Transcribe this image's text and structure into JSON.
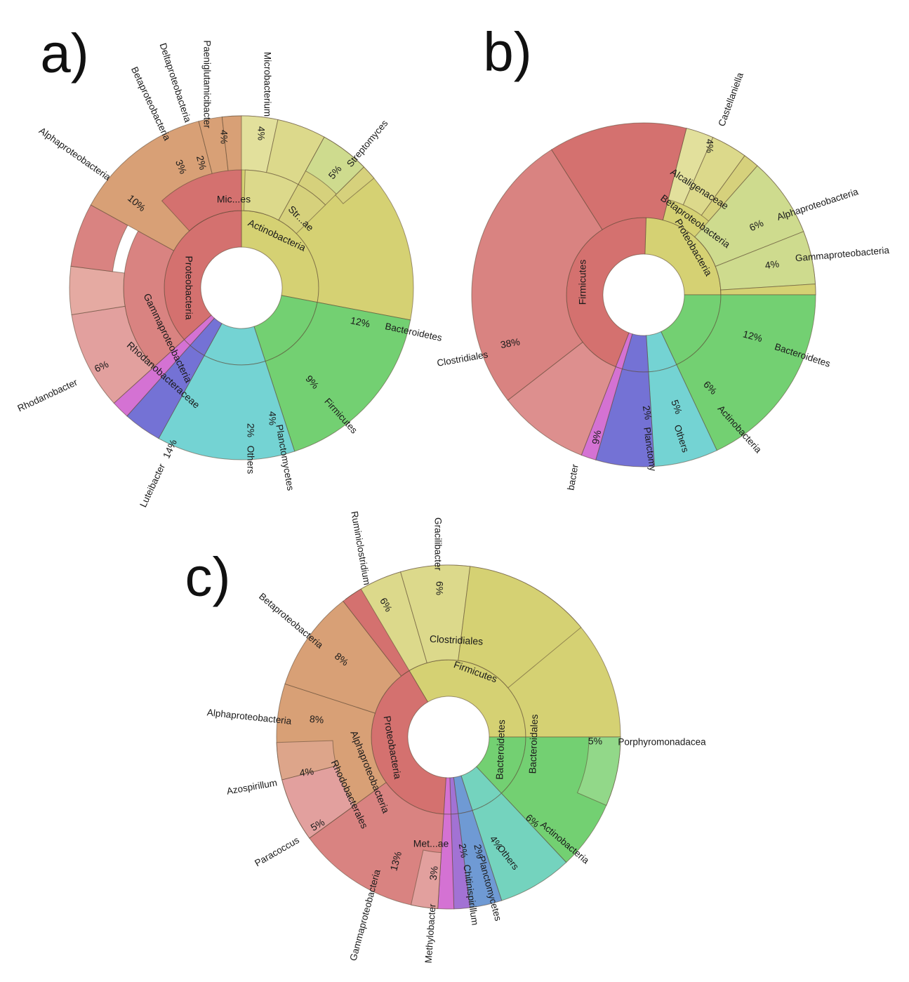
{
  "chart_data": [
    {
      "type": "sunburst",
      "panel": "a)",
      "levels": [
        {
          "level": 1,
          "items": [
            {
              "name": "Proteobacteria",
              "start": -0.1,
              "end": 28.4,
              "color": "#d4716f"
            },
            {
              "name": "Actinobacteria",
              "start": 28.4,
              "end": 56,
              "color": "#d5d173"
            },
            {
              "name": "Bacteroidetes",
              "start": 56,
              "end": 68,
              "color": "#73d072"
            },
            {
              "name": "Firmicutes",
              "start": 68,
              "end": 77,
              "color": "#74d3d3"
            },
            {
              "name": "Planctomycetes",
              "start": 77,
              "end": 81,
              "color": "#7472d5"
            },
            {
              "name": "Others",
              "start": 81,
              "end": 82.6,
              "color": "#d472d3"
            },
            {
              "name": "Proteobacteria",
              "start": 82.6,
              "end": 99.9,
              "color": "#d4716f"
            }
          ]
        },
        {
          "level": 2,
          "items": [
            {
              "name": "Betaproteobacteria",
              "start": -0.1,
              "end": 3,
              "color": "#d8a076"
            },
            {
              "name": "Deltaproteobacteria",
              "start": -2.6,
              "end": -0.1,
              "color": "#d8a076"
            },
            {
              "name": "Alphaproteobacteria",
              "start": -13,
              "end": -2.6,
              "color": "#d8a076"
            },
            {
              "name": "Gammaproteobacteria",
              "start": -17.4,
              "end": -13,
              "color": "#d98381"
            },
            {
              "name": "",
              "start": 3,
              "end": 28.4,
              "color": "#d98381"
            },
            {
              "name": "Mic...es",
              "start": -0.3,
              "end": 7,
              "color": "#dcd98b"
            },
            {
              "name": "Str...ae",
              "start": 7,
              "end": 11.5,
              "color": "#d6d17c"
            }
          ]
        },
        {
          "level": 3,
          "items": [
            {
              "name": "Paeniglutamicibacter",
              "start": -0.3,
              "end": 3.7,
              "color": "#e2e09c"
            },
            {
              "name": "Microbacterium",
              "start": 3.7,
              "end": 7.7,
              "color": "#dcd98b"
            },
            {
              "name": "Streptomyces",
              "start": 7.7,
              "end": 12.5,
              "color": "#cedb8e"
            }
          ]
        }
      ],
      "percent_labels": [
        "4%",
        "4%",
        "5%",
        "2%",
        "3%",
        "10%",
        "6%",
        "14%",
        "2%",
        "4%",
        "9%",
        "12%"
      ],
      "outer_labels": [
        "Paeniglutamicibacter",
        "Microbacterium",
        "Streptomyces",
        "Deltaproteobacteria",
        "Betaproteobacteria",
        "Alphaproteobacteria",
        "Rhodanobacter",
        "Luteibacter",
        "Others",
        "Planctomycetes",
        "Firmicutes",
        "Bacteroidetes"
      ],
      "inner_labels": [
        "Mic...es",
        "Str...ae",
        "Actinobacteria",
        "Proteobacteria",
        "Gammaproteobacteria",
        "Rhodanobacteraceae"
      ]
    },
    {
      "type": "sunburst",
      "panel": "b)",
      "percent_labels": [
        "4%",
        "6%",
        "4%",
        "12%",
        "6%",
        "5%",
        "2%",
        "9%",
        "38%"
      ],
      "outer_labels": [
        "Castellaniella",
        "Alphaproteobacteria",
        "Gammaproteobacteria",
        "Bacteroidetes",
        "Actinobacteria",
        "Others",
        "Planctomy",
        "bacter",
        "Clostridiales"
      ],
      "inner_labels": [
        "Alcaligenaceae",
        "Betaproteobacteria",
        "Proteobacteria",
        "Firmicutes"
      ]
    },
    {
      "type": "sunburst",
      "panel": "c)",
      "percent_labels": [
        "6%",
        "6%",
        "8%",
        "8%",
        "4%",
        "5%",
        "13%",
        "3%",
        "2%",
        "2%",
        "4%",
        "6%",
        "5%"
      ],
      "outer_labels": [
        "Ruminiclostridium",
        "Gracilibacter",
        "Betaproteobacteria",
        "Alphaproteobacteria",
        "Azospirillum",
        "Paracoccus",
        "Gammaproteobacteria",
        "Methylobacter",
        "Chitinispirillum",
        "Planctomycetes",
        "Others",
        "Actinobacteria",
        "Porphyromonadacea"
      ],
      "inner_labels": [
        "Clostridiales",
        "Firmicutes",
        "Bacteroidetes",
        "Bacteroidales",
        "Proteobacteria",
        "Alphaproteobacteria",
        "Rhodobacterales",
        "Met...ae"
      ]
    }
  ]
}
